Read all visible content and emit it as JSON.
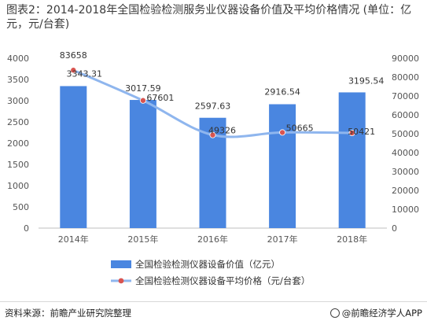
{
  "chart_data": {
    "type": "bar",
    "title": "图表2：2014-2018年全国检验检测服务业仪器设备价值及平均价格情况 (单位：亿元，元/台套)",
    "categories": [
      "2014年",
      "2015年",
      "2016年",
      "2017年",
      "2018年"
    ],
    "series": [
      {
        "name": "全国检验检测仪器设备价值（亿元）",
        "type": "bar",
        "axis": "left",
        "values": [
          3343.31,
          3017.59,
          2597.63,
          2916.54,
          3195.54
        ],
        "labels": [
          "3343.31",
          "3017.59",
          "2597.63",
          "2916.54",
          "3195.54"
        ],
        "color": "#4a86e0"
      },
      {
        "name": "全国检验检测仪器设备平均价格（元/台套）",
        "type": "line",
        "axis": "right",
        "values": [
          83658,
          67601,
          49326,
          50665,
          50421
        ],
        "labels": [
          "83658",
          "67601",
          "49326",
          "50665",
          "50421"
        ],
        "color": "#8fb6ee",
        "marker_color": "#d95450"
      }
    ],
    "y_left": {
      "lim": [
        0,
        4000
      ],
      "ticks": [
        "0",
        "500",
        "1000",
        "1500",
        "2000",
        "2500",
        "3000",
        "3500",
        "4000"
      ]
    },
    "y_right": {
      "lim": [
        0,
        90000
      ],
      "ticks": [
        "0",
        "10000",
        "20000",
        "30000",
        "40000",
        "50000",
        "60000",
        "70000",
        "80000",
        "90000"
      ]
    },
    "grid": false,
    "legend": "bottom"
  },
  "footer": {
    "source": "资料来源：前瞻产业研究院整理",
    "credit": "@前瞻经济学人APP"
  }
}
